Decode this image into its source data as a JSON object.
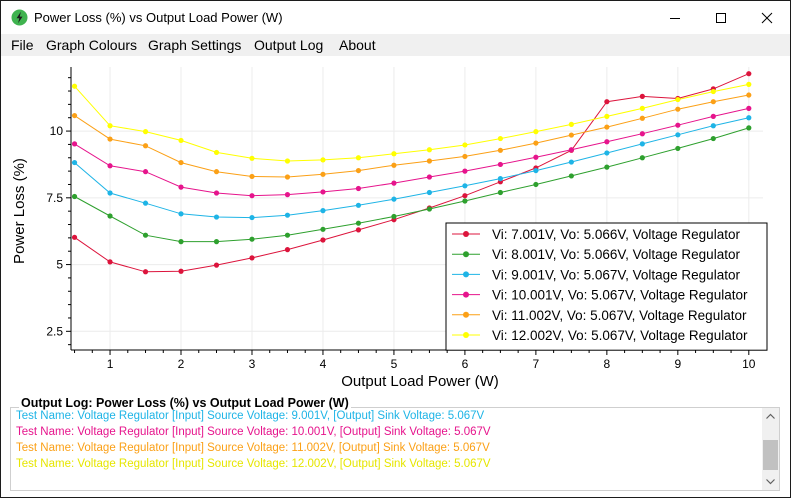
{
  "window": {
    "title": "Power Loss (%) vs Output Load Power (W)",
    "icon": "lightning-bolt-icon",
    "controls": {
      "minimize": "minimize-icon",
      "maximize": "maximize-icon",
      "close": "close-icon"
    }
  },
  "menu": {
    "items": [
      "File",
      "Graph Colours",
      "Graph Settings",
      "Output Log",
      "About"
    ]
  },
  "chart_data": {
    "type": "line",
    "xlabel": "Output Load Power (W)",
    "ylabel": "Power Loss (%)",
    "xlim": [
      0.45,
      10.2
    ],
    "ylim": [
      1.8,
      12.4
    ],
    "x_ticks": [
      1,
      2,
      3,
      4,
      5,
      6,
      7,
      8,
      9,
      10
    ],
    "y_ticks": [
      2.5,
      5,
      7.5,
      10
    ],
    "y_tick_labels": [
      "2.5",
      "5",
      "7.5",
      "10"
    ],
    "grid": true,
    "legend_position": "bottom-right",
    "x": [
      0.5,
      1.0,
      1.5,
      2.0,
      2.5,
      3.0,
      3.5,
      4.0,
      4.5,
      5.0,
      5.5,
      6.0,
      6.5,
      7.0,
      7.5,
      8.0,
      8.5,
      9.0,
      9.5,
      10.0
    ],
    "series": [
      {
        "name": "Vi: 7.001V, Vo: 5.066V, Voltage Regulator",
        "color": "#dc143c",
        "values": [
          6.02,
          5.1,
          4.73,
          4.75,
          4.98,
          5.25,
          5.56,
          5.92,
          6.3,
          6.68,
          7.12,
          7.58,
          8.1,
          8.62,
          9.28,
          11.1,
          11.3,
          11.22,
          11.58,
          12.15
        ]
      },
      {
        "name": "Vi: 8.001V, Vo: 5.066V, Voltage Regulator",
        "color": "#2ea02e",
        "values": [
          7.55,
          6.82,
          6.1,
          5.86,
          5.86,
          5.95,
          6.1,
          6.32,
          6.55,
          6.8,
          7.08,
          7.38,
          7.7,
          8.0,
          8.32,
          8.65,
          9.0,
          9.35,
          9.72,
          10.12
        ]
      },
      {
        "name": "Vi: 9.001V, Vo: 5.067V, Voltage Regulator",
        "color": "#1eb4e6",
        "values": [
          8.82,
          7.68,
          7.3,
          6.9,
          6.78,
          6.76,
          6.85,
          7.02,
          7.22,
          7.45,
          7.7,
          7.95,
          8.22,
          8.52,
          8.84,
          9.18,
          9.52,
          9.86,
          10.2,
          10.5
        ]
      },
      {
        "name": "Vi: 10.001V, Vo: 5.067V, Voltage Regulator",
        "color": "#e6148c",
        "values": [
          9.52,
          8.7,
          8.48,
          7.9,
          7.68,
          7.58,
          7.62,
          7.72,
          7.85,
          8.05,
          8.28,
          8.5,
          8.75,
          9.02,
          9.3,
          9.6,
          9.9,
          10.22,
          10.55,
          10.85
        ]
      },
      {
        "name": "Vi: 11.002V, Vo: 5.067V, Voltage Regulator",
        "color": "#fba016",
        "values": [
          10.58,
          9.7,
          9.45,
          8.82,
          8.48,
          8.3,
          8.28,
          8.38,
          8.52,
          8.72,
          8.88,
          9.05,
          9.28,
          9.55,
          9.85,
          10.15,
          10.48,
          10.82,
          11.1,
          11.35
        ]
      },
      {
        "name": "Vi: 12.002V, Vo: 5.067V, Voltage Regulator",
        "color": "#ffff00",
        "values": [
          11.68,
          10.2,
          9.98,
          9.65,
          9.2,
          8.98,
          8.88,
          8.92,
          9.0,
          9.15,
          9.3,
          9.48,
          9.72,
          9.98,
          10.25,
          10.55,
          10.85,
          11.18,
          11.48,
          11.75
        ]
      }
    ]
  },
  "log": {
    "title": "Output Log: Power Loss (%) vs Output Load Power (W)",
    "lines": [
      {
        "text": "Test Name: Voltage Regulator [Input] Source Voltage: 9.001V, [Output] Sink Voltage: 5.067V",
        "color": "#1eb4e6"
      },
      {
        "text": "Test Name: Voltage Regulator [Input] Source Voltage: 10.001V, [Output] Sink Voltage: 5.067V",
        "color": "#e6148c"
      },
      {
        "text": "Test Name: Voltage Regulator [Input] Source Voltage: 11.002V, [Output] Sink Voltage: 5.067V",
        "color": "#fba016"
      },
      {
        "text": "Test Name: Voltage Regulator [Input] Source Voltage: 12.002V, [Output] Sink Voltage: 5.067V",
        "color": "#e6e600"
      }
    ]
  }
}
